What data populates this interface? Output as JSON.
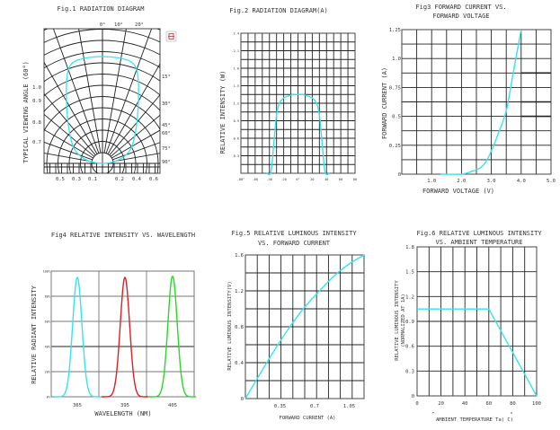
{
  "chart_data": [
    {
      "id": "fig1",
      "type": "polar",
      "title": "Fig.1 RADIATION DIAGRAM",
      "ylabel": "TYPICAL VIEWING ANGLE (60°)",
      "top_angle_labels": [
        "0°",
        "10°",
        "20°"
      ],
      "right_angle_labels": [
        "15°",
        "30°",
        "45°",
        "60°",
        "75°",
        "90°"
      ],
      "left_radial_labels": [
        "1.0",
        "0.9",
        "0.8",
        "0.7"
      ],
      "bottom_labels": [
        "0.5",
        "0.3",
        "0.1",
        "0.2",
        "0.4",
        "0.6"
      ],
      "series": [
        {
          "name": "radiation pattern",
          "color": "#33e6ee",
          "shape": "rounded-lobe",
          "viewing_angle_deg": 60
        }
      ]
    },
    {
      "id": "fig2",
      "type": "line",
      "title": "Fig.2 RADIATION DIAGRAM(A)",
      "xlabel": "",
      "ylabel": "RELATIVE INTENSITY (W)",
      "xlim": [
        -80,
        80
      ],
      "ylim": [
        0,
        2.4
      ],
      "xticks": [
        "-80°",
        "-60",
        "-40",
        "-20",
        "0°",
        "20",
        "40",
        "60",
        "80"
      ],
      "yticks": [
        "0.3",
        "0.6",
        "0.9",
        "1.2",
        "1.5",
        "1.8",
        "2.1",
        "2.4"
      ],
      "series": [
        {
          "name": "intensity",
          "color": "#33e6ee",
          "x": [
            -44,
            -38,
            -34,
            -30,
            -26,
            -20,
            -12,
            -6,
            0,
            6,
            12,
            20,
            26,
            30,
            34,
            38,
            44
          ],
          "y": [
            0,
            0.02,
            0.5,
            1.0,
            1.2,
            1.29,
            1.33,
            1.35,
            1.35,
            1.35,
            1.33,
            1.29,
            1.2,
            1.0,
            0.5,
            0.02,
            0
          ]
        }
      ]
    },
    {
      "id": "fig3",
      "type": "line",
      "title": "Fig3 FORWARD CURRENT VS. FORWARD VOLTAGE",
      "xlabel": "FORWARD VOLTAGE (V)",
      "ylabel": "FORWARD CURRENT (A)",
      "xlim": [
        0,
        5
      ],
      "ylim": [
        0,
        1.25
      ],
      "xticks": [
        "1.0",
        "2.0",
        "3.0",
        "4.0",
        "5.0"
      ],
      "yticks": [
        "0",
        "0.25",
        "0.5",
        "0.75",
        "1.0",
        "1.25"
      ],
      "series": [
        {
          "name": "I-V",
          "color": "#33e6ee",
          "x": [
            1.3,
            2.0,
            2.3,
            2.6,
            2.8,
            3.0,
            3.2,
            3.5,
            3.75,
            4.0
          ],
          "y": [
            0,
            0,
            0.02,
            0.05,
            0.1,
            0.2,
            0.33,
            0.55,
            0.9,
            1.25
          ]
        }
      ]
    },
    {
      "id": "fig4",
      "type": "line",
      "title": "Fig4 RELATIVE INTENSITY VS. WAVELENGTH",
      "xlabel": "WAVELENGTH (NM)",
      "ylabel": "RELATIVE RADIANT INTENSITY",
      "ylim": [
        0,
        100
      ],
      "xticks": [
        "365",
        "395",
        "405"
      ],
      "yticks": [
        "0%",
        "20%",
        "40%",
        "60%",
        "80%",
        "100%"
      ],
      "series": [
        {
          "name": "365nm",
          "color": "#33e6ee",
          "peak": 95
        },
        {
          "name": "395nm",
          "color": "#e02020",
          "peak": 95
        },
        {
          "name": "405nm",
          "color": "#22dd22",
          "peak": 96
        }
      ]
    },
    {
      "id": "fig5",
      "type": "line",
      "title": "Fig.5 RELATIVE LUMINOUS INTENSITY VS. FORWARD CURRENT",
      "xlabel": "FORWARD CURRENT (A)",
      "ylabel": "RELATIVE LUMINOUS INTENSITY(V)",
      "xlim": [
        0,
        1.2
      ],
      "ylim": [
        0,
        1.6
      ],
      "xticks": [
        "0.35",
        "0.7",
        "1.05"
      ],
      "yticks": [
        "0",
        "0.4",
        "0.8",
        "1.2",
        "1.6"
      ],
      "series": [
        {
          "name": "Iv-If",
          "color": "#33e6ee",
          "x": [
            0,
            0.15,
            0.3,
            0.45,
            0.6,
            0.75,
            0.9,
            1.05,
            1.2
          ],
          "y": [
            0,
            0.28,
            0.55,
            0.8,
            1.02,
            1.2,
            1.37,
            1.5,
            1.6
          ]
        }
      ]
    },
    {
      "id": "fig6",
      "type": "line",
      "title": "Fig.6 RELATIVE LUMINOUS INTENSITY VS. AMBIENT TEMPERATURE",
      "xlabel": "AMBIENT TEMPERATURE Ta( C)",
      "ylabel": "RELATIVE LUMINOUS INTENSITY (NORMALIZED AT 1A)",
      "xlim": [
        0,
        100
      ],
      "ylim": [
        0,
        1.8
      ],
      "xticks": [
        "0",
        "20",
        "40",
        "60",
        "80",
        "100"
      ],
      "yticks": [
        "0",
        "0.3",
        "0.6",
        "0.9",
        "1.2",
        "1.5",
        "1.8"
      ],
      "series": [
        {
          "name": "Iv-Ta",
          "color": "#33e6ee",
          "x": [
            0,
            60,
            100
          ],
          "y": [
            1.05,
            1.05,
            0
          ]
        }
      ]
    }
  ],
  "fig1": {
    "title": "Fig.1 RADIATION DIAGRAM",
    "ylabel": "TYPICAL VIEWING ANGLE (60°)",
    "top": [
      "0°",
      "10°",
      "20°"
    ],
    "right": [
      "15°",
      "30°",
      "45°",
      "60°",
      "75°",
      "90°"
    ],
    "left": [
      "1.0",
      "0.9",
      "0.8",
      "0.7"
    ],
    "bottom": [
      "0.5",
      "0.3",
      "0.1",
      "0.2",
      "0.4",
      "0.6"
    ]
  },
  "fig2": {
    "title": "Fig.2 RADIATION DIAGRAM(A)",
    "ylabel": "RELATIVE INTENSITY (W)",
    "xticks": [
      "-80°",
      "-60",
      "-40",
      "-20",
      "0°",
      "20",
      "40",
      "60",
      "80"
    ],
    "yticks": [
      "0.3",
      "0.6",
      "0.9",
      "1.2",
      "1.5",
      "1.8",
      "2.1",
      "2.4"
    ]
  },
  "fig3": {
    "title1": "Fig3 FORWARD CURRENT VS.",
    "title2": "FORWARD VOLTAGE",
    "xlabel": "FORWARD VOLTAGE (V)",
    "ylabel": "FORWARD CURRENT (A)",
    "xticks": [
      "1.0",
      "2.0",
      "3.0",
      "4.0",
      "5.0"
    ],
    "yticks": [
      "0",
      "0.25",
      "0.5",
      "0.75",
      "1.0",
      "1.25"
    ]
  },
  "fig4": {
    "title": "Fig4 RELATIVE INTENSITY VS. WAVELENGTH",
    "xlabel": "WAVELENGTH (NM)",
    "ylabel": "RELATIVE RADIANT INTENSITY",
    "xticks": [
      "365",
      "395",
      "405"
    ],
    "yticks": [
      "0%",
      "20%",
      "40%",
      "60%",
      "80%",
      "100%"
    ]
  },
  "fig5": {
    "title1": "Fig.5 RELATIVE LUMINOUS INTENSITY",
    "title2": "VS. FORWARD CURRENT",
    "xlabel": "FORWARD CURRENT (A)",
    "ylabel": "RELATIVE LUMINOUS INTENSITY(V)",
    "xticks": [
      "0.35",
      "0.7",
      "1.05"
    ],
    "yticks": [
      "0",
      "0.4",
      "0.8",
      "1.2",
      "1.6"
    ]
  },
  "fig6": {
    "title1": "Fig.6 RELATIVE LUMINOUS INTENSITY",
    "title2": "VS. AMBIENT TEMPERATURE",
    "xlabel": "AMBIENT TEMPERATURE Ta( C)",
    "ylabel1": "RELATIVE LUMINOUS INTENSITY",
    "ylabel2": "(NORMALIZED AT 1A)",
    "xticks": [
      "0",
      "20",
      "40",
      "60",
      "80",
      "100"
    ],
    "yticks": [
      "0",
      "0.3",
      "0.6",
      "0.9",
      "1.2",
      "1.5",
      "1.8"
    ]
  },
  "colors": {
    "cyan": "#33e6ee",
    "red": "#e02020",
    "green": "#22dd22",
    "grid": "#222222"
  }
}
